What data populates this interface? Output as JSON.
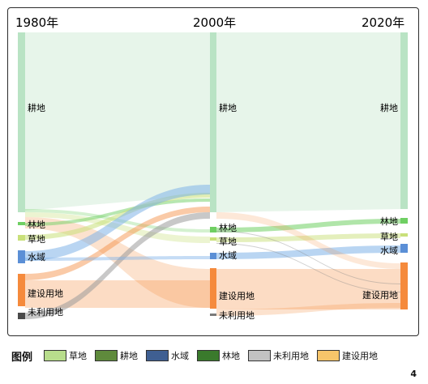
{
  "years": [
    "1980年",
    "2000年",
    "2020年"
  ],
  "colors": {
    "cropland": "#b9e3c4",
    "forest": "#6fcf63",
    "grass": "#c9e07a",
    "water": "#5b8fd6",
    "built": "#f58a3c",
    "unused": "#4a4a4a",
    "unused_light": "#7a7a7a"
  },
  "node_labels": {
    "y1980": [
      "耕地",
      "林地",
      "草地",
      "水域",
      "建设用地",
      "未利用地"
    ],
    "y2000": [
      "耕地",
      "林地",
      "草地",
      "水域",
      "建设用地",
      "未利用地"
    ],
    "y2020": [
      "耕地",
      "林地",
      "草地",
      "水域",
      "建设用地"
    ]
  },
  "legend": {
    "title": "图例",
    "items": [
      {
        "label": "草地",
        "color": "#b8dd8c"
      },
      {
        "label": "耕地",
        "color": "#5f8a3c"
      },
      {
        "label": "水域",
        "color": "#3f5f92"
      },
      {
        "label": "林地",
        "color": "#3a7a2c"
      },
      {
        "label": "未利用地",
        "color": "#c2c2c2"
      },
      {
        "label": "建设用地",
        "color": "#f7c56a"
      }
    ]
  },
  "page_number": "4"
}
